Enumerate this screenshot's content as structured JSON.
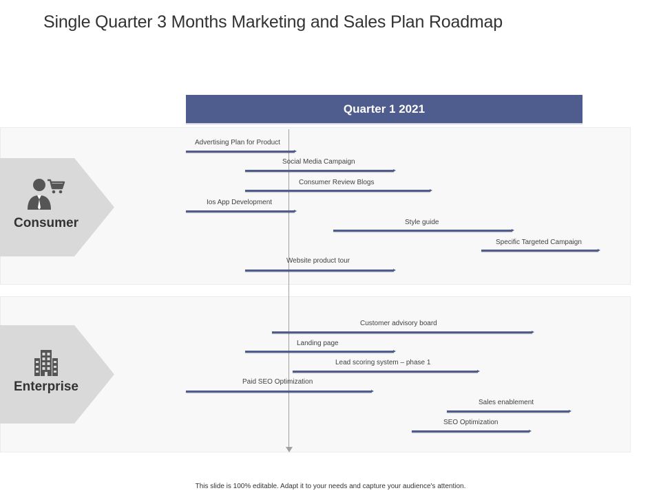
{
  "title": "Single Quarter 3 Months Marketing and Sales Plan Roadmap",
  "period_header": "Quarter 1  2021",
  "segments": {
    "consumer": {
      "label": "Consumer",
      "icon": "consumer-cart-icon"
    },
    "enterprise": {
      "label": "Enterprise",
      "icon": "building-icon"
    }
  },
  "consumer_tasks": [
    {
      "label": "Advertising Plan for Product"
    },
    {
      "label": "Social Media Campaign"
    },
    {
      "label": "Consumer Review Blogs"
    },
    {
      "label": "Ios App Development"
    },
    {
      "label": "Style guide"
    },
    {
      "label": "Specific Targeted Campaign"
    },
    {
      "label": "Website product tour"
    }
  ],
  "enterprise_tasks": [
    {
      "label": "Customer advisory board"
    },
    {
      "label": "Landing page"
    },
    {
      "label": "Lead scoring system – phase 1"
    },
    {
      "label": "Paid SEO  Optimization"
    },
    {
      "label": "Sales enablement"
    },
    {
      "label": "SEO  Optimization"
    }
  ],
  "colors": {
    "header_bar": "#4e5c8e",
    "task_bar": "#4e5c8e",
    "segment_arrow": "#d9d9d9",
    "band_background": "#f8f8f8"
  },
  "footer": "This slide is 100% editable. Adapt it to your needs and capture your audience's attention."
}
